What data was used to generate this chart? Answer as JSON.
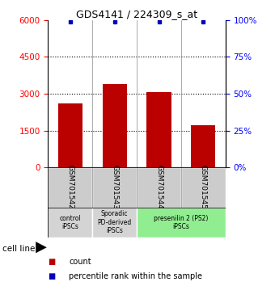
{
  "title": "GDS4141 / 224309_s_at",
  "samples": [
    "GSM701542",
    "GSM701543",
    "GSM701544",
    "GSM701545"
  ],
  "counts": [
    2600,
    3400,
    3050,
    1700
  ],
  "percentile_ranks": [
    99,
    99,
    99,
    99
  ],
  "bar_color": "#bb0000",
  "dot_color": "#0000bb",
  "ylim_left": [
    0,
    6000
  ],
  "ylim_right": [
    0,
    100
  ],
  "yticks_left": [
    0,
    1500,
    3000,
    4500,
    6000
  ],
  "yticks_right": [
    0,
    25,
    50,
    75,
    100
  ],
  "groups": [
    {
      "label": "control\niPSCs",
      "start": 0,
      "end": 1,
      "color": "#d4d4d4"
    },
    {
      "label": "Sporadic\nPD-derived\niPSCs",
      "start": 1,
      "end": 2,
      "color": "#d4d4d4"
    },
    {
      "label": "presenilin 2 (PS2)\niPSCs",
      "start": 2,
      "end": 4,
      "color": "#90ee90"
    }
  ],
  "xlabel_cellline": "cell line",
  "legend_count_label": "count",
  "legend_pct_label": "percentile rank within the sample",
  "background_color": "#ffffff",
  "sample_box_color": "#cccccc"
}
